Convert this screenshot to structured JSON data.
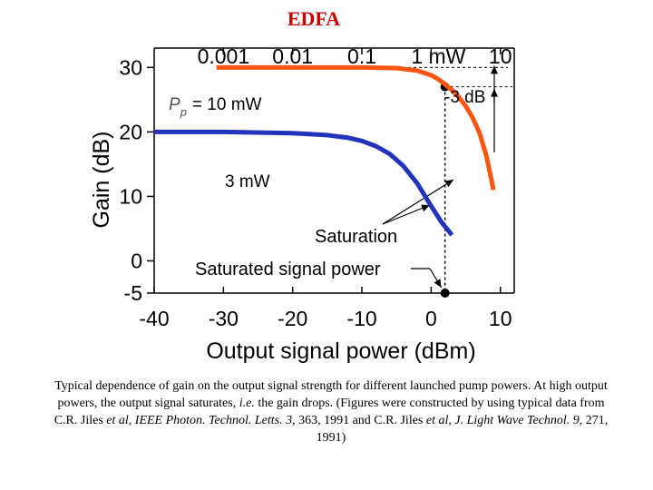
{
  "slide": {
    "title": "EDFA"
  },
  "colors": {
    "title": "#cc0000",
    "series_10mW": "#ff5511",
    "series_3mW": "#2233bb",
    "axes": "#000000"
  },
  "chart_data": {
    "type": "line",
    "xlabel": "Output signal power (dBm)",
    "ylabel": "Gain (dB)",
    "xlim": [
      -40,
      12
    ],
    "ylim": [
      -5,
      33
    ],
    "x_ticks": [
      -40,
      -30,
      -20,
      -10,
      0,
      10
    ],
    "y_ticks": [
      -5,
      0,
      10,
      20,
      30
    ],
    "top_axis": {
      "ticks": [
        {
          "label": "0.001",
          "dbm": -30
        },
        {
          "label": "0.01",
          "dbm": -20
        },
        {
          "label": "0.1",
          "dbm": -10
        },
        {
          "label": "1 mW",
          "dbm": 0
        },
        {
          "label": "10",
          "dbm": 10
        }
      ]
    },
    "series": [
      {
        "label": "= 10 mW",
        "label_symbol": "P",
        "label_subscript": "p",
        "color": "#ff5511",
        "x": [
          -31,
          -20,
          -10,
          -5,
          -2,
          0,
          1,
          2,
          3,
          4,
          5,
          6,
          7,
          8,
          9
        ],
        "y": [
          30,
          30,
          30,
          29.9,
          29.5,
          28.8,
          28.2,
          27.4,
          26.5,
          25.4,
          24,
          22.2,
          19.8,
          16.2,
          11
        ]
      },
      {
        "label": "3 mW",
        "color": "#2233bb",
        "x": [
          -40,
          -30,
          -20,
          -15,
          -12,
          -10,
          -8,
          -6,
          -4,
          -2,
          0,
          1.5,
          3
        ],
        "y": [
          20,
          20,
          19.8,
          19.5,
          19.1,
          18.6,
          17.8,
          16.6,
          14.7,
          12,
          8.5,
          6,
          4
        ]
      }
    ],
    "annotations": {
      "db_drop": "-3 dB",
      "saturation": "Saturation",
      "saturated_power": "Saturated signal power",
      "saturation_point": {
        "x": 2,
        "y": 27
      }
    },
    "grid": false
  },
  "caption": {
    "part1": "Typical dependence of gain on the output signal strength for different launched pump powers. At high output powers, the output signal saturates, ",
    "ie": "i.e.",
    "part2": " the gain drops. (Figures were constructed by using typical data from C.R. Jiles ",
    "etal1": "et al",
    "part3": ", ",
    "journal1": "IEEE Photon. Technol. Letts.",
    "part4": " ",
    "vol1": "3",
    "part5": ", 363, 1991 and C.R. Jiles ",
    "etal2": "et al",
    "part6": ", ",
    "journal2": "J. Light Wave Technol.",
    "part7": " ",
    "vol2": "9",
    "part8": ", 271, 1991)"
  }
}
